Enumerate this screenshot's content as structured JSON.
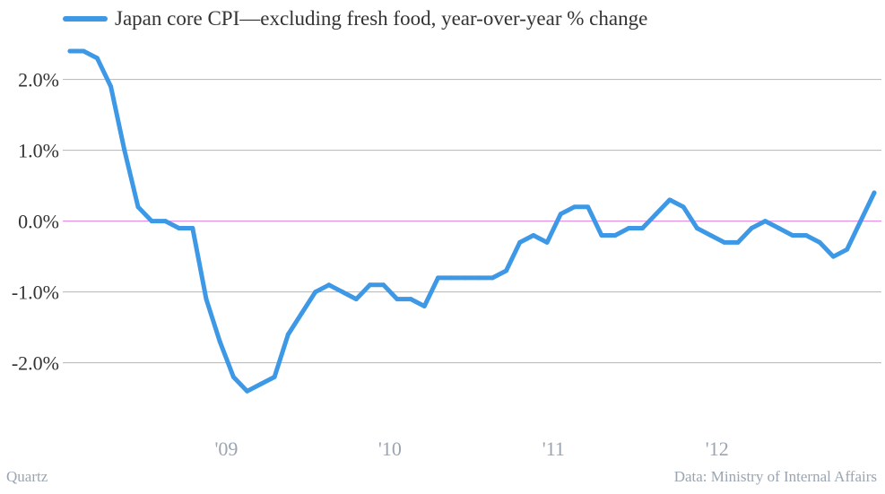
{
  "chart_data": {
    "type": "line",
    "title": "",
    "xlabel": "",
    "ylabel": "",
    "ylim": [
      -2.7,
      2.4
    ],
    "yticks": [
      2.0,
      1.0,
      0.0,
      -1.0,
      -2.0
    ],
    "ytick_labels": [
      "2.0%",
      "1.0%",
      "0.0%",
      "-1.0%",
      "-2.0%"
    ],
    "xticks": [
      2009.0,
      2010.0,
      2011.0,
      2012.0
    ],
    "xtick_labels": [
      "'09",
      "'10",
      "'11",
      "'12"
    ],
    "xlim": [
      2008.0,
      2013.0
    ],
    "grid": true,
    "legend_position": "top-left",
    "series": [
      {
        "name": "Japan core CPI—excluding fresh food, year-over-year % change",
        "x": [
          "2008-01",
          "2008-02",
          "2008-03",
          "2008-04",
          "2008-05",
          "2008-06",
          "2008-07",
          "2008-08",
          "2008-09",
          "2008-10",
          "2008-11",
          "2008-12",
          "2009-01",
          "2009-02",
          "2009-03",
          "2009-04",
          "2009-05",
          "2009-06",
          "2009-07",
          "2009-08",
          "2009-09",
          "2009-10",
          "2009-11",
          "2009-12",
          "2010-01",
          "2010-02",
          "2010-03",
          "2010-04",
          "2010-05",
          "2010-06",
          "2010-07",
          "2010-08",
          "2010-09",
          "2010-10",
          "2010-11",
          "2010-12",
          "2011-01",
          "2011-02",
          "2011-03",
          "2011-04",
          "2011-05",
          "2011-06",
          "2011-07",
          "2011-08",
          "2011-09",
          "2011-10",
          "2011-11",
          "2011-12",
          "2012-01",
          "2012-02",
          "2012-03",
          "2012-04",
          "2012-05",
          "2012-06",
          "2012-07",
          "2012-08",
          "2012-09",
          "2012-10",
          "2012-11",
          "2012-12"
        ],
        "values": [
          2.4,
          2.4,
          2.3,
          1.9,
          1.0,
          0.2,
          0.0,
          0.0,
          -0.1,
          -0.1,
          -1.1,
          -1.7,
          -2.2,
          -2.4,
          -2.3,
          -2.2,
          -1.6,
          -1.3,
          -1.0,
          -0.9,
          -1.0,
          -1.1,
          -0.9,
          -0.9,
          -1.1,
          -1.1,
          -1.2,
          -0.8,
          -0.8,
          -0.8,
          -0.8,
          -0.8,
          -0.7,
          -0.3,
          -0.2,
          -0.3,
          0.1,
          0.2,
          0.2,
          -0.2,
          -0.2,
          -0.1,
          -0.1,
          0.1,
          0.3,
          0.2,
          -0.1,
          -0.2,
          -0.3,
          -0.3,
          -0.1,
          0.0,
          -0.1,
          -0.2,
          -0.2,
          -0.3,
          -0.5,
          -0.4,
          0.0,
          0.4
        ]
      }
    ]
  },
  "colors": {
    "line": "#3d98e6",
    "grid": "#b4b4b4",
    "zero_line": "#e07ee0",
    "tick_text": "#333333",
    "xtick_text": "#9aa5b1"
  },
  "footer": {
    "source": "Quartz",
    "credit": "Data: Ministry of Internal Affairs"
  }
}
